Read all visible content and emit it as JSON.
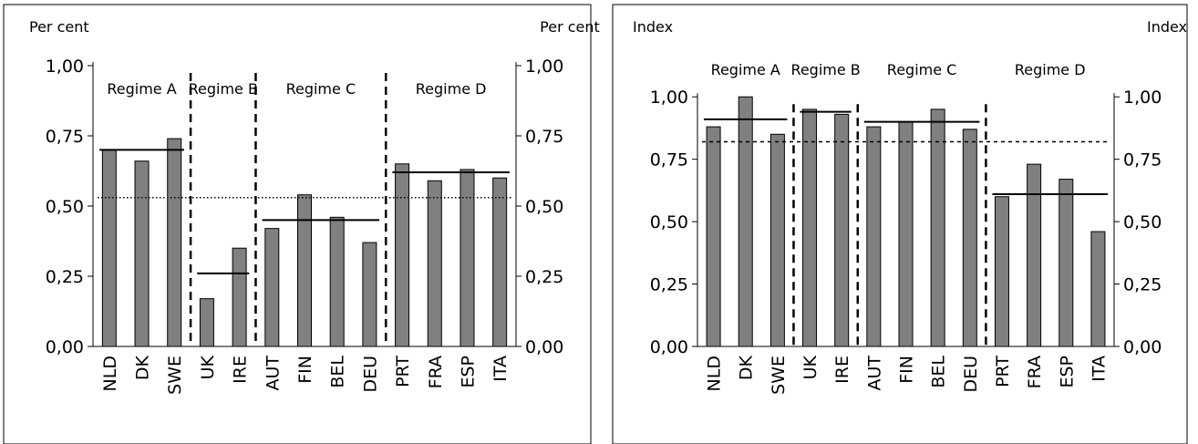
{
  "chart_data": [
    {
      "type": "bar",
      "left_unit_label": "Per cent",
      "right_unit_label": "Per cent",
      "categories": [
        "NLD",
        "DK",
        "SWE",
        "UK",
        "IRE",
        "AUT",
        "FIN",
        "BEL",
        "DEU",
        "PRT",
        "FRA",
        "ESP",
        "ITA"
      ],
      "values": [
        0.7,
        0.66,
        0.74,
        0.17,
        0.35,
        0.42,
        0.54,
        0.46,
        0.37,
        0.65,
        0.59,
        0.63,
        0.6
      ],
      "ylim": [
        0,
        1
      ],
      "ticks": [
        "0,00",
        "0,25",
        "0,50",
        "0,75",
        "1,00"
      ],
      "regimes": [
        {
          "label": "Regime A",
          "start": 0,
          "end": 2,
          "mean": 0.7
        },
        {
          "label": "Regime B",
          "start": 3,
          "end": 4,
          "mean": 0.26
        },
        {
          "label": "Regime C",
          "start": 5,
          "end": 8,
          "mean": 0.45
        },
        {
          "label": "Regime D",
          "start": 9,
          "end": 12,
          "mean": 0.62
        }
      ],
      "overall_mean": 0.53,
      "colors": {
        "bar": "#808080"
      }
    },
    {
      "type": "bar",
      "left_unit_label": "Index",
      "right_unit_label": "Index",
      "categories": [
        "NLD",
        "DK",
        "SWE",
        "UK",
        "IRE",
        "AUT",
        "FIN",
        "BEL",
        "DEU",
        "PRT",
        "FRA",
        "ESP",
        "ITA"
      ],
      "values": [
        0.88,
        1.0,
        0.85,
        0.95,
        0.93,
        0.88,
        0.9,
        0.95,
        0.87,
        0.6,
        0.73,
        0.67,
        0.46
      ],
      "ylim": [
        0,
        1.125
      ],
      "ticks": [
        "0,00",
        "0,25",
        "0,50",
        "0,75",
        "1,00"
      ],
      "regimes": [
        {
          "label": "Regime A",
          "start": 0,
          "end": 2,
          "mean": 0.91
        },
        {
          "label": "Regime B",
          "start": 3,
          "end": 4,
          "mean": 0.94
        },
        {
          "label": "Regime C",
          "start": 5,
          "end": 8,
          "mean": 0.9
        },
        {
          "label": "Regime D",
          "start": 9,
          "end": 12,
          "mean": 0.61
        }
      ],
      "overall_mean": 0.82,
      "colors": {
        "bar": "#808080"
      }
    }
  ]
}
